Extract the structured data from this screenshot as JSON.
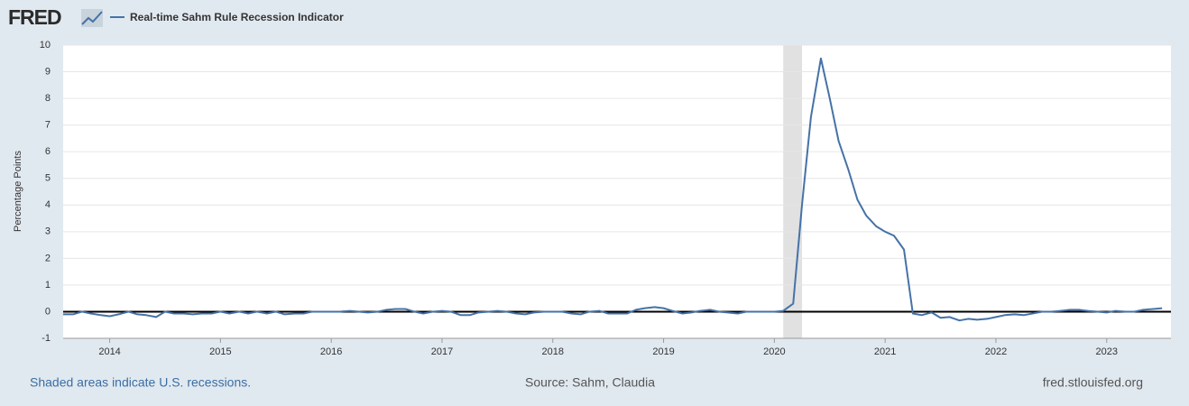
{
  "chart_data": {
    "type": "line",
    "logo": "FRED",
    "ylabel": "Percentage Points",
    "footer_left": "Shaded areas indicate U.S. recessions.",
    "footer_center": "Source: Sahm, Claudia",
    "footer_right": "fred.stlouisfed.org",
    "xlim": [
      2013.58,
      2023.58
    ],
    "xticks": [
      2014,
      2015,
      2016,
      2017,
      2018,
      2019,
      2020,
      2021,
      2022,
      2023
    ],
    "ylim": [
      -1,
      10
    ],
    "yticks": [
      -1,
      0,
      1,
      2,
      3,
      4,
      5,
      6,
      7,
      8,
      9,
      10
    ],
    "grid": true,
    "recessions": [
      [
        2020.08,
        2020.25
      ]
    ],
    "x": [
      2013.58,
      2013.67,
      2013.75,
      2013.83,
      2013.92,
      2014,
      2014.08,
      2014.17,
      2014.25,
      2014.33,
      2014.42,
      2014.5,
      2014.58,
      2014.67,
      2014.75,
      2014.83,
      2014.92,
      2015,
      2015.08,
      2015.17,
      2015.25,
      2015.33,
      2015.42,
      2015.5,
      2015.58,
      2015.67,
      2015.75,
      2015.83,
      2015.92,
      2016,
      2016.08,
      2016.17,
      2016.25,
      2016.33,
      2016.42,
      2016.5,
      2016.58,
      2016.67,
      2016.75,
      2016.83,
      2016.92,
      2017,
      2017.08,
      2017.17,
      2017.25,
      2017.33,
      2017.42,
      2017.5,
      2017.58,
      2017.67,
      2017.75,
      2017.83,
      2017.92,
      2018,
      2018.08,
      2018.17,
      2018.25,
      2018.33,
      2018.42,
      2018.5,
      2018.58,
      2018.67,
      2018.75,
      2018.83,
      2018.92,
      2019,
      2019.08,
      2019.17,
      2019.25,
      2019.33,
      2019.42,
      2019.5,
      2019.58,
      2019.67,
      2019.75,
      2019.83,
      2019.92,
      2020,
      2020.08,
      2020.17,
      2020.25,
      2020.33,
      2020.42,
      2020.5,
      2020.58,
      2020.67,
      2020.75,
      2020.83,
      2020.92,
      2021,
      2021.08,
      2021.17,
      2021.25,
      2021.33,
      2021.42,
      2021.5,
      2021.58,
      2021.67,
      2021.75,
      2021.83,
      2021.92,
      2022,
      2022.08,
      2022.17,
      2022.25,
      2022.33,
      2022.42,
      2022.5,
      2022.58,
      2022.67,
      2022.75,
      2022.83,
      2022.92,
      2023,
      2023.08,
      2023.17,
      2023.25,
      2023.33,
      2023.42,
      2023.5
    ],
    "series": [
      {
        "name": "Real-time Sahm Rule Recession Indicator",
        "color": "#4572a7",
        "values": [
          -0.1,
          -0.1,
          0,
          -0.07,
          -0.13,
          -0.17,
          -0.1,
          0,
          -0.1,
          -0.13,
          -0.2,
          0,
          -0.07,
          -0.07,
          -0.1,
          -0.07,
          -0.07,
          0,
          -0.07,
          0,
          -0.07,
          0,
          -0.07,
          0,
          -0.1,
          -0.07,
          -0.07,
          0,
          0,
          0,
          0,
          0.03,
          0,
          -0.03,
          0,
          0.07,
          0.1,
          0.1,
          0,
          -0.07,
          0,
          0.03,
          0,
          -0.13,
          -0.13,
          -0.03,
          0,
          0.03,
          0,
          -0.07,
          -0.1,
          -0.03,
          0,
          0,
          0,
          -0.07,
          -0.1,
          0,
          0.03,
          -0.07,
          -0.07,
          -0.07,
          0.07,
          0.13,
          0.17,
          0.13,
          0.03,
          -0.07,
          -0.03,
          0.03,
          0.07,
          0,
          -0.03,
          -0.07,
          0,
          0,
          0,
          0,
          0.03,
          0.3,
          4.03,
          7.3,
          9.5,
          8.0,
          6.4,
          5.3,
          4.2,
          3.6,
          3.2,
          3.0,
          2.85,
          2.33,
          -0.07,
          -0.13,
          -0.03,
          -0.23,
          -0.2,
          -0.33,
          -0.27,
          -0.3,
          -0.27,
          -0.2,
          -0.13,
          -0.1,
          -0.13,
          -0.07,
          0,
          0,
          0.03,
          0.07,
          0.07,
          0.03,
          0,
          -0.03,
          0.03,
          0,
          0,
          0.07,
          0.1,
          0.13
        ]
      }
    ]
  }
}
